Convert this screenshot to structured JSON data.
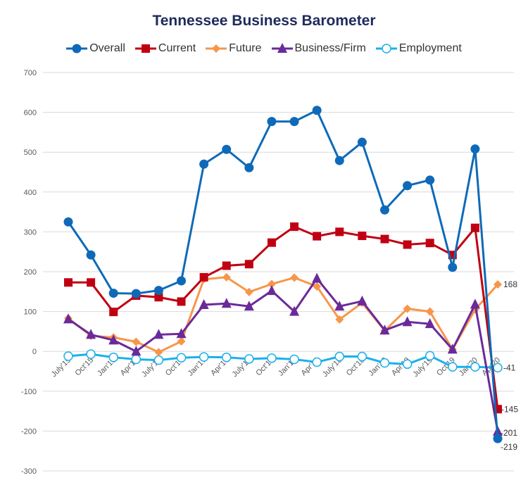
{
  "chart_data": {
    "type": "line",
    "title": "Tennessee Business Barometer",
    "xlabel": "",
    "ylabel": "",
    "ylim": [
      -300,
      700
    ],
    "yticks": [
      700,
      600,
      500,
      400,
      300,
      200,
      100,
      0,
      -100,
      -200,
      -300
    ],
    "grid": true,
    "legend": "top",
    "categories": [
      "July'15",
      "Oct'15",
      "Jan'16",
      "Apr'16",
      "July'16",
      "Oct'16",
      "Jan'17",
      "Apr'17",
      "July'17",
      "Oct'17",
      "Jan'18",
      "Apr'18",
      "July'18",
      "Oct'18",
      "Jan'19",
      "Apr'19",
      "July'19",
      "Oct'19",
      "Jan'20",
      "Apr'20"
    ],
    "series": [
      {
        "name": "Overall",
        "color": "#0e6ab8",
        "marker": "circle",
        "values": [
          325,
          242,
          146,
          145,
          153,
          177,
          470,
          507,
          461,
          577,
          577,
          605,
          479,
          525,
          355,
          416,
          430,
          211,
          508,
          -219
        ],
        "end_label": "-219"
      },
      {
        "name": "Current",
        "color": "#c00012",
        "marker": "square",
        "values": [
          173,
          173,
          99,
          140,
          136,
          125,
          186,
          215,
          219,
          273,
          313,
          289,
          300,
          290,
          282,
          268,
          272,
          242,
          310,
          -145
        ],
        "end_label": "-145"
      },
      {
        "name": "Future",
        "color": "#f7964a",
        "marker": "diamond",
        "values": [
          83,
          39,
          35,
          24,
          -2,
          25,
          181,
          186,
          149,
          169,
          185,
          163,
          80,
          122,
          52,
          107,
          100,
          5,
          105,
          168
        ],
        "end_label": "168"
      },
      {
        "name": "Business/Firm",
        "color": "#6a2a9a",
        "marker": "triangle",
        "values": [
          81,
          42,
          28,
          0,
          42,
          44,
          117,
          120,
          113,
          152,
          100,
          183,
          113,
          126,
          53,
          74,
          69,
          5,
          118,
          -201
        ],
        "end_label": "-201"
      },
      {
        "name": "Employment",
        "color": "#1ab0ec",
        "marker": "open-circle",
        "values": [
          -12,
          -7,
          -15,
          -20,
          -22,
          -16,
          -14,
          -15,
          -19,
          -17,
          -20,
          -27,
          -13,
          -13,
          -29,
          -32,
          -11,
          -39,
          -39,
          -41
        ],
        "end_label": "-41"
      }
    ]
  }
}
